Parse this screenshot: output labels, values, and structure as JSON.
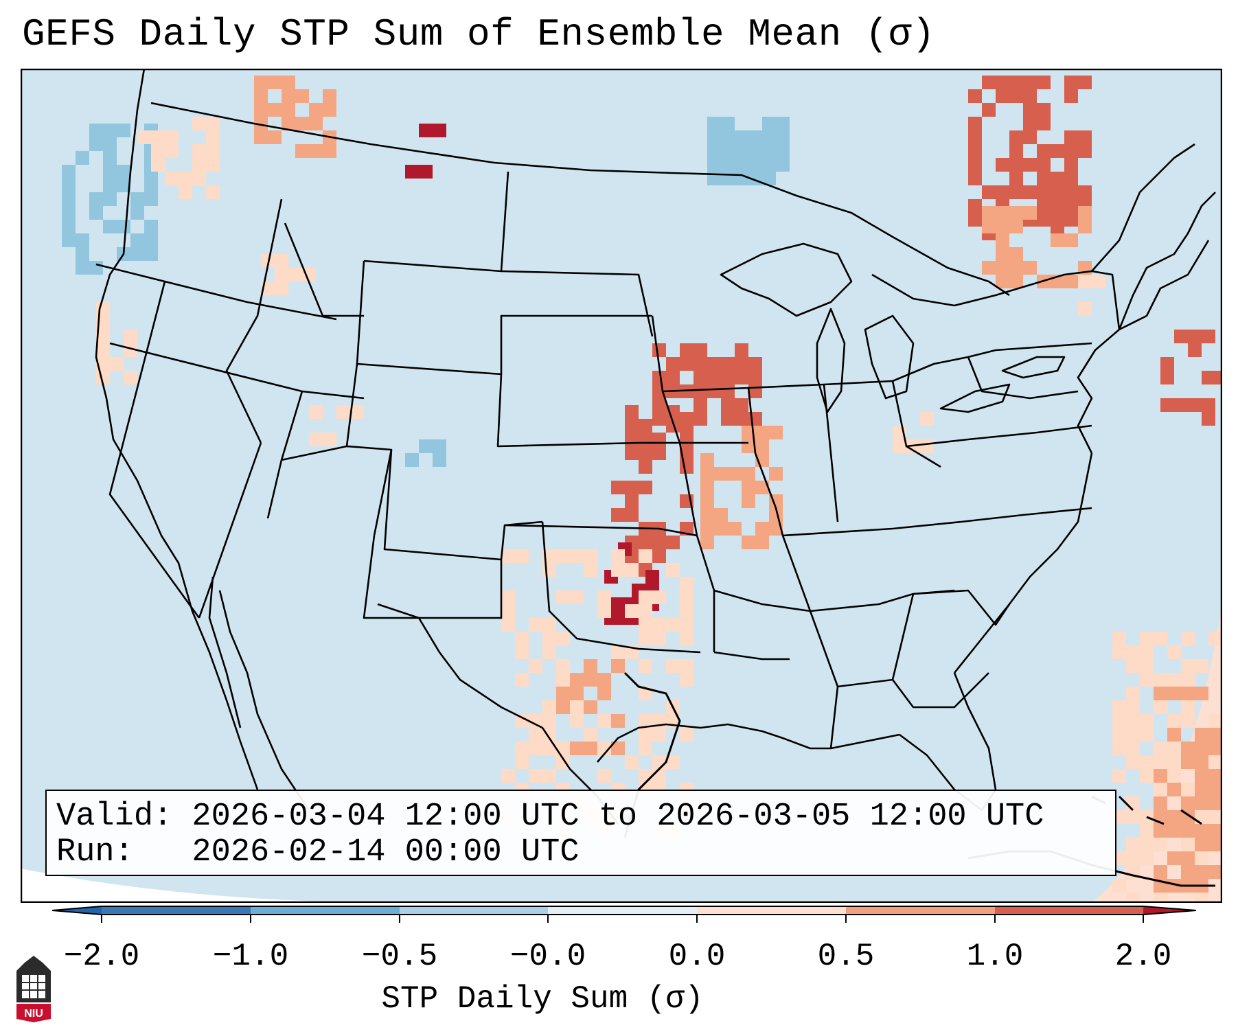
{
  "title": "GEFS Daily STP Sum of Ensemble Mean (σ)",
  "valid_label": "Valid: 2026-03-04 12:00 UTC to 2026-03-05 12:00 UTC",
  "run_label": "Run:   2026-02-14 00:00 UTC",
  "colorbar": {
    "label": "STP Daily Sum (σ)",
    "ticks": [
      "−2.0",
      "−1.0",
      "−0.5",
      "−0.0",
      "0.0",
      "0.5",
      "1.0",
      "2.0"
    ],
    "colors": [
      "#3a78b5",
      "#6aaed6",
      "#a8d0e6",
      "#e4eef5",
      "#fde0d2",
      "#f2a07f",
      "#d6604d",
      "#b2182b"
    ]
  },
  "map": {
    "region": "Continental United States",
    "background_color": "#d1e5f0",
    "boundary_color": "#000000"
  },
  "logo": {
    "text": "NIU"
  },
  "icons": [
    "niu-logo-icon"
  ]
}
